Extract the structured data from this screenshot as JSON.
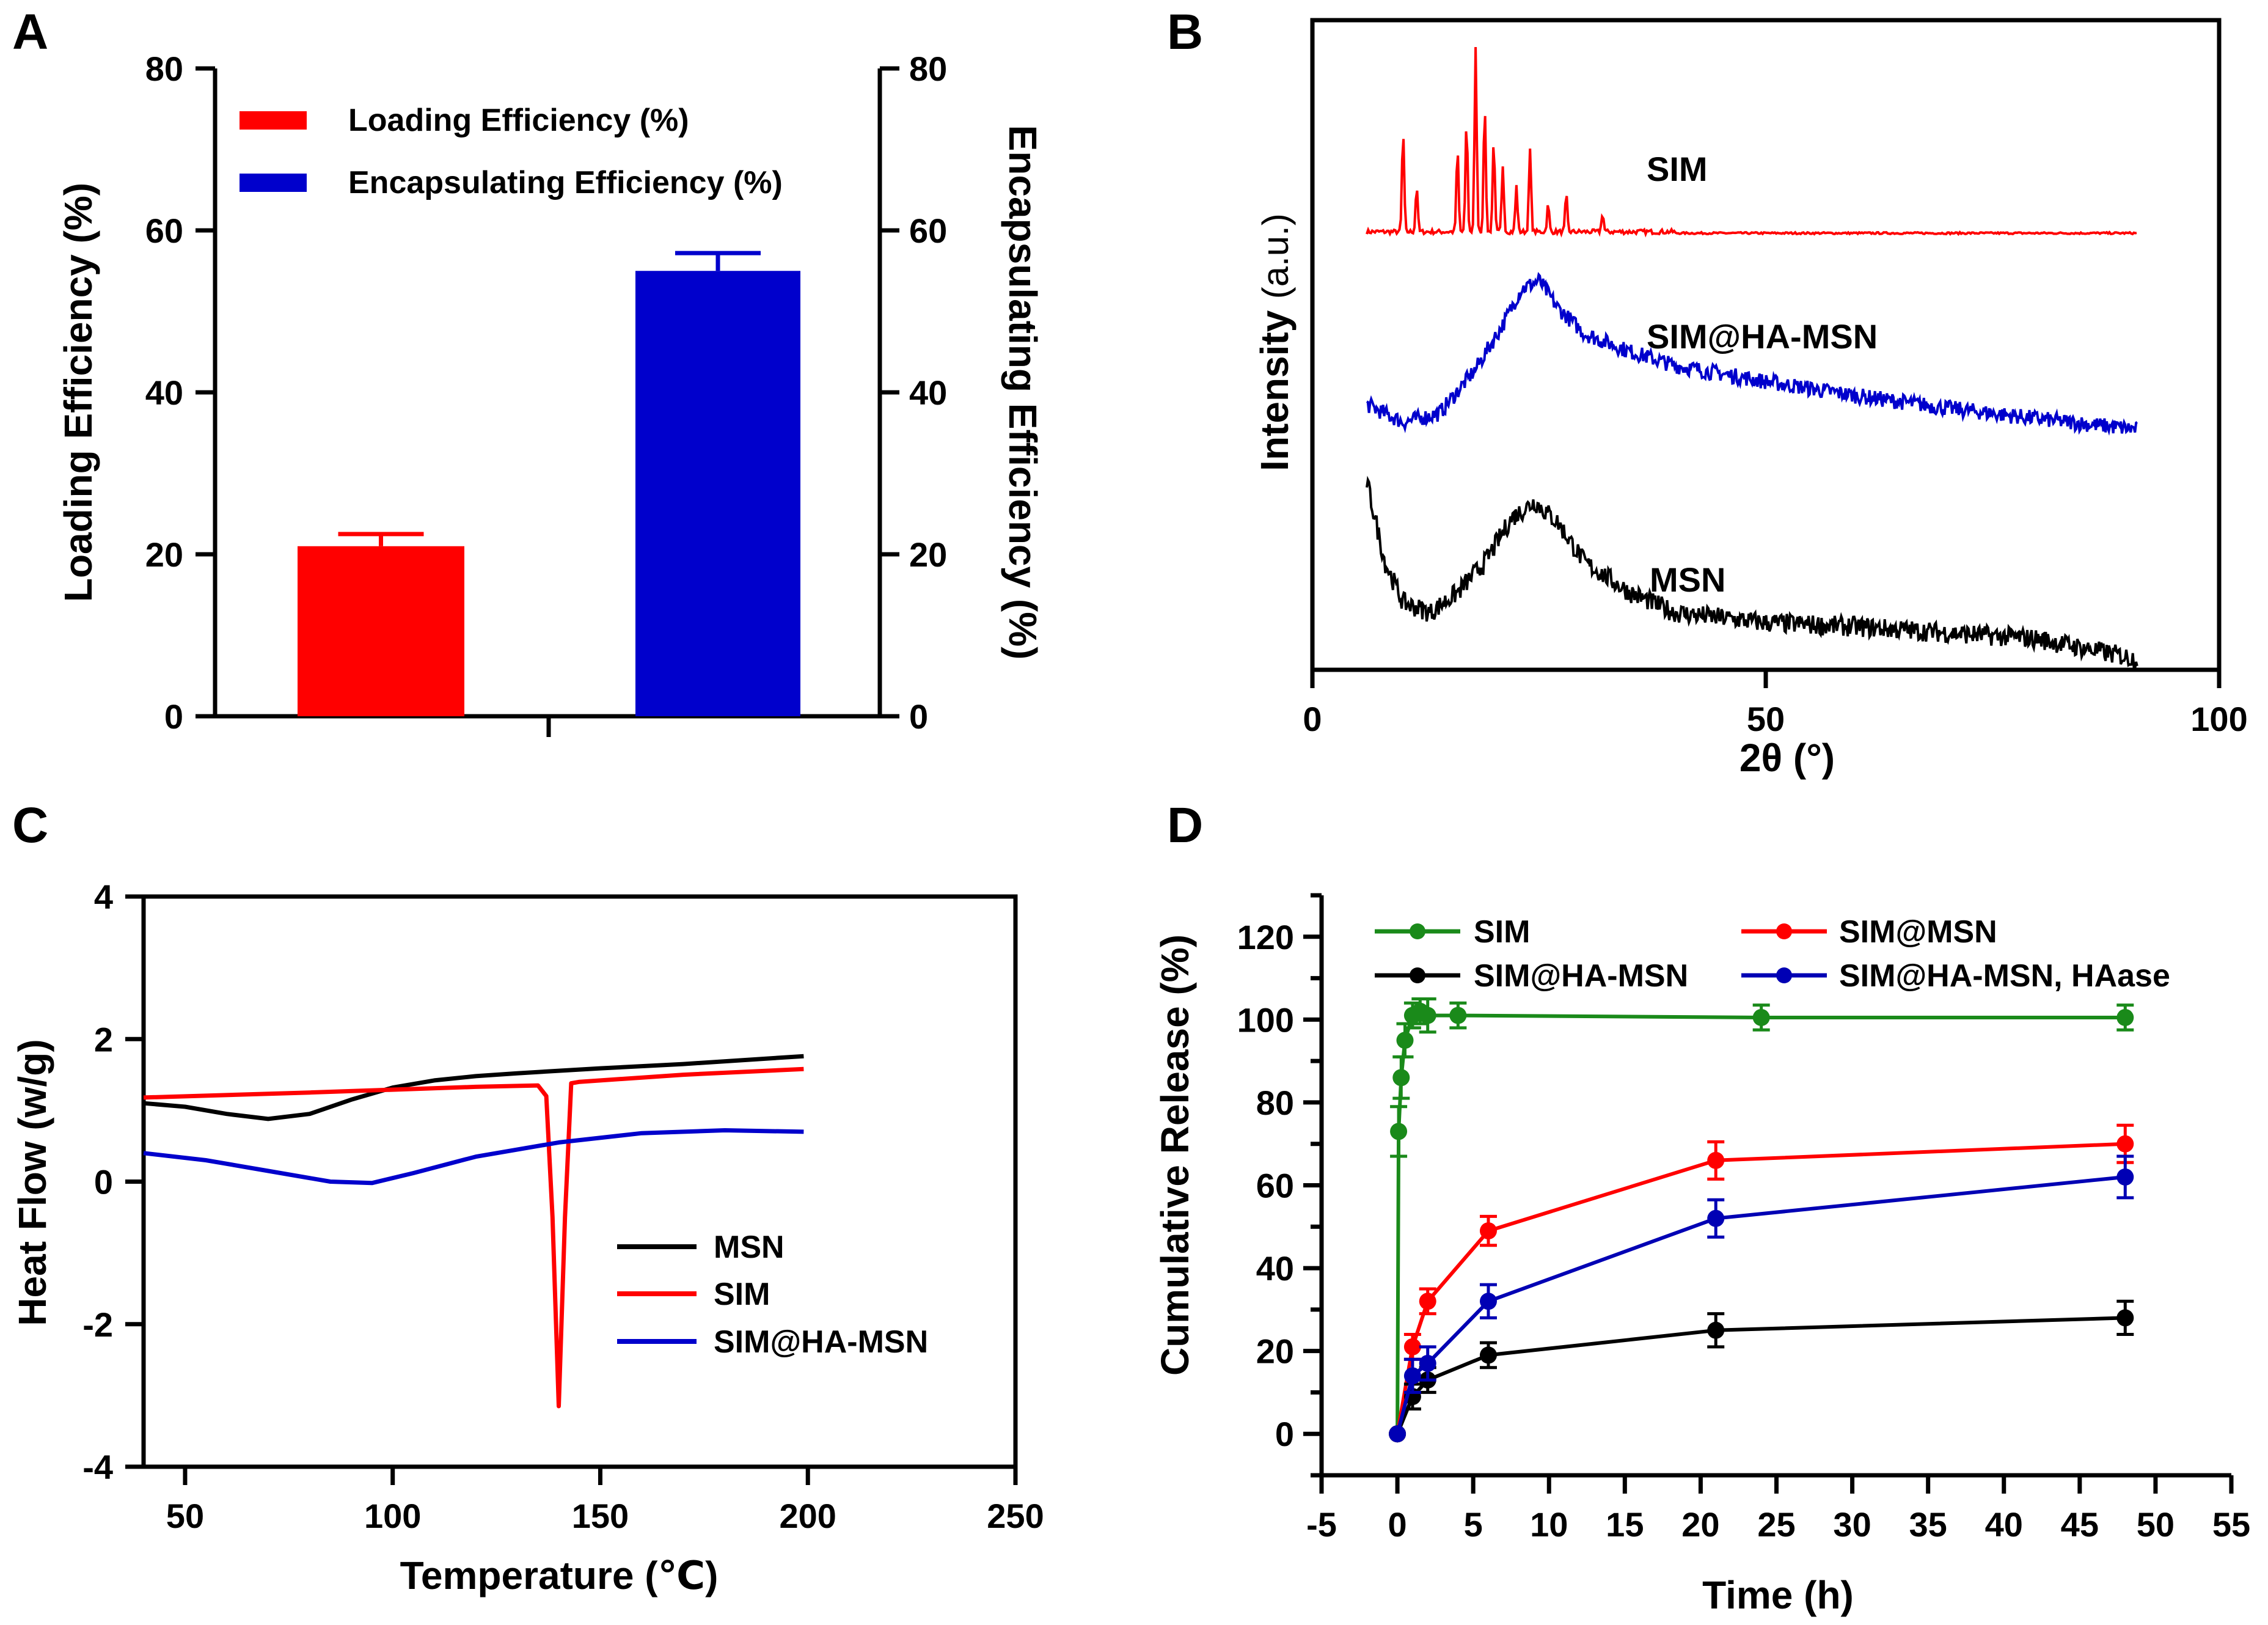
{
  "colors": {
    "red": "#ff0000",
    "blue": "#0000cc",
    "black": "#000000",
    "green": "#1a8a1a",
    "navy": "#0000b4"
  },
  "chart_data": [
    {
      "panel": "A",
      "type": "bar",
      "ylabel": "Loading Efficiency (%)",
      "y2label": "Encapsulating Efficiency (%)",
      "ylim": [
        0,
        80
      ],
      "yticks": [
        0,
        20,
        40,
        60,
        80
      ],
      "y2ticks": [
        0,
        20,
        40,
        60,
        80
      ],
      "legend_position": "top-left",
      "series": [
        {
          "name": "Loading Efficiency (%)",
          "value": 21,
          "error": 1.5,
          "color": "#ff0000"
        },
        {
          "name": "Encapsulating Efficiency (%)",
          "value": 55,
          "error": 2.2,
          "color": "#0000cc"
        }
      ]
    },
    {
      "panel": "B",
      "type": "line",
      "xlabel": "2θ (°)",
      "ylabel": "Intensity",
      "ylabel_unit": "(a.u.)",
      "xlim": [
        0,
        100
      ],
      "xticks": [
        0,
        50,
        100
      ],
      "series": [
        {
          "name": "SIM",
          "color": "#ff0000",
          "peaks": [
            [
              10,
              0.55
            ],
            [
              11.5,
              0.25
            ],
            [
              16,
              0.45
            ],
            [
              17,
              0.6
            ],
            [
              18,
              1.0
            ],
            [
              19,
              0.7
            ],
            [
              20,
              0.5
            ],
            [
              21,
              0.35
            ],
            [
              22.5,
              0.25
            ],
            [
              24,
              0.45
            ],
            [
              26,
              0.15
            ],
            [
              28,
              0.2
            ],
            [
              32,
              0.1
            ]
          ]
        },
        {
          "name": "SIM@HA-MSN",
          "color": "#0000cc",
          "x": [
            6,
            10,
            14,
            18,
            21,
            23,
            25,
            27,
            30,
            35,
            40,
            50,
            60,
            70,
            80,
            91
          ],
          "y": [
            0.2,
            0.1,
            0.15,
            0.4,
            0.65,
            0.85,
            0.9,
            0.75,
            0.6,
            0.5,
            0.42,
            0.33,
            0.25,
            0.18,
            0.12,
            0.06
          ]
        },
        {
          "name": "MSN",
          "color": "#000000",
          "x": [
            6,
            8,
            10,
            13,
            16,
            19,
            22,
            24.5,
            27,
            30,
            35,
            40,
            50,
            60,
            70,
            80,
            91
          ],
          "y": [
            0.9,
            0.5,
            0.3,
            0.25,
            0.35,
            0.5,
            0.72,
            0.8,
            0.7,
            0.5,
            0.35,
            0.25,
            0.2,
            0.18,
            0.15,
            0.12,
            0.02
          ]
        }
      ]
    },
    {
      "panel": "C",
      "type": "line",
      "xlabel": "Temperature (℃)",
      "ylabel": "Heat Flow (w/g)",
      "xlim": [
        40,
        250
      ],
      "ylim": [
        -4,
        4
      ],
      "xticks": [
        50,
        100,
        150,
        200,
        250
      ],
      "yticks": [
        -4,
        -2,
        0,
        2,
        4
      ],
      "legend_position": "bottom-right",
      "series": [
        {
          "name": "MSN",
          "color": "#000000",
          "x": [
            40,
            50,
            60,
            70,
            80,
            90,
            100,
            110,
            120,
            130,
            150,
            170,
            199
          ],
          "y": [
            1.1,
            1.05,
            0.95,
            0.88,
            0.95,
            1.15,
            1.32,
            1.42,
            1.48,
            1.52,
            1.59,
            1.65,
            1.76
          ]
        },
        {
          "name": "SIM",
          "color": "#ff0000",
          "x": [
            40,
            80,
            120,
            135,
            137,
            138.5,
            140,
            141.5,
            143,
            145,
            170,
            199
          ],
          "y": [
            1.18,
            1.25,
            1.33,
            1.35,
            1.2,
            -0.5,
            -3.15,
            -0.5,
            1.38,
            1.4,
            1.5,
            1.58
          ]
        },
        {
          "name": "SIM@HA-MSN",
          "color": "#0000cc",
          "x": [
            40,
            55,
            70,
            85,
            95,
            105,
            120,
            140,
            160,
            180,
            199
          ],
          "y": [
            0.4,
            0.3,
            0.15,
            0.0,
            -0.02,
            0.12,
            0.35,
            0.55,
            0.68,
            0.72,
            0.7
          ]
        }
      ]
    },
    {
      "panel": "D",
      "type": "line",
      "xlabel": "Time (h)",
      "ylabel": "Cumulative Release (%)",
      "xlim": [
        -5,
        55
      ],
      "ylim": [
        -10,
        130
      ],
      "xticks": [
        -5,
        0,
        5,
        10,
        15,
        20,
        25,
        30,
        35,
        40,
        45,
        50,
        55
      ],
      "yticks": [
        0,
        20,
        40,
        60,
        80,
        100,
        120
      ],
      "legend_position": "top",
      "series": [
        {
          "name": "SIM",
          "color": "#1a8a1a",
          "x": [
            0,
            0.08,
            0.25,
            0.5,
            1,
            1.5,
            2,
            4,
            24,
            48
          ],
          "y": [
            0,
            73,
            86,
            95,
            101,
            102,
            101,
            101,
            100.5,
            100.5
          ],
          "err": [
            0,
            6,
            5,
            4,
            3,
            3,
            4,
            3,
            3,
            3
          ]
        },
        {
          "name": "SIM@MSN",
          "color": "#ff0000",
          "x": [
            0,
            1,
            2,
            6,
            21,
            48
          ],
          "y": [
            0,
            21,
            32,
            49,
            66,
            70
          ],
          "err": [
            0,
            3,
            3,
            3.5,
            4.5,
            4.5
          ]
        },
        {
          "name": "SIM@HA-MSN",
          "color": "#000000",
          "x": [
            0,
            1,
            2,
            6,
            21,
            48
          ],
          "y": [
            0,
            9,
            13,
            19,
            25,
            28
          ],
          "err": [
            0,
            3,
            3,
            3,
            4,
            4
          ]
        },
        {
          "name": "SIM@HA-MSN, HAase",
          "color": "#0000b4",
          "x": [
            0,
            1,
            2,
            6,
            21,
            48
          ],
          "y": [
            0,
            14,
            17,
            32,
            52,
            62
          ],
          "err": [
            0,
            4,
            4,
            4,
            4.5,
            5
          ]
        }
      ]
    }
  ],
  "panels": {
    "A": {
      "letter": "A"
    },
    "B": {
      "letter": "B"
    },
    "C": {
      "letter": "C"
    },
    "D": {
      "letter": "D"
    }
  }
}
